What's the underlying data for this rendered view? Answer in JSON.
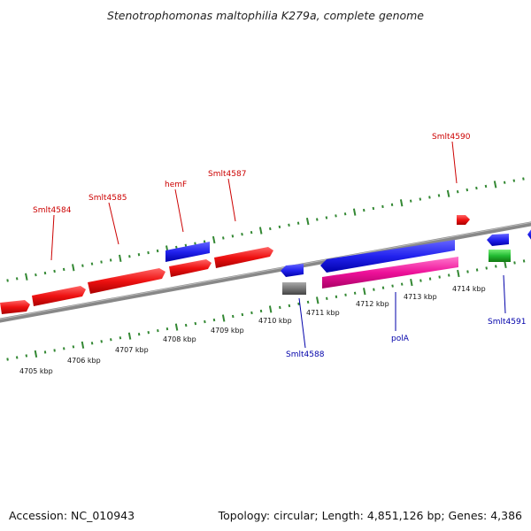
{
  "title": "Stenotrophomonas maltophilia K279a, complete genome",
  "accession": "Accession: NC_010943",
  "summary": "Topology: circular; Length: 4,851,126 bp; Genes: 4,386",
  "colors": {
    "forward_cds": "#ee1111",
    "reverse_cds": "#2222ee",
    "rna": "#ee1199",
    "pseudo": "#777777",
    "other": "#22bb33",
    "ticks": "#338833",
    "backbone": "#888888",
    "forward_label": "#cc0000",
    "reverse_label": "#0000aa"
  },
  "scale_labels": [
    "4705 kbp",
    "4706 kbp",
    "4707 kbp",
    "4708 kbp",
    "4709 kbp",
    "4710 kbp",
    "4711 kbp",
    "4712 kbp",
    "4713 kbp",
    "4714 kbp"
  ],
  "gene_labels": {
    "smlt4584": "Smlt4584",
    "smlt4585": "Smlt4585",
    "hemF": "hemF",
    "smlt4587": "Smlt4587",
    "smlt4590": "Smlt4590",
    "smlt4588": "Smlt4588",
    "polA": "polA",
    "smlt4591": "Smlt4591"
  }
}
